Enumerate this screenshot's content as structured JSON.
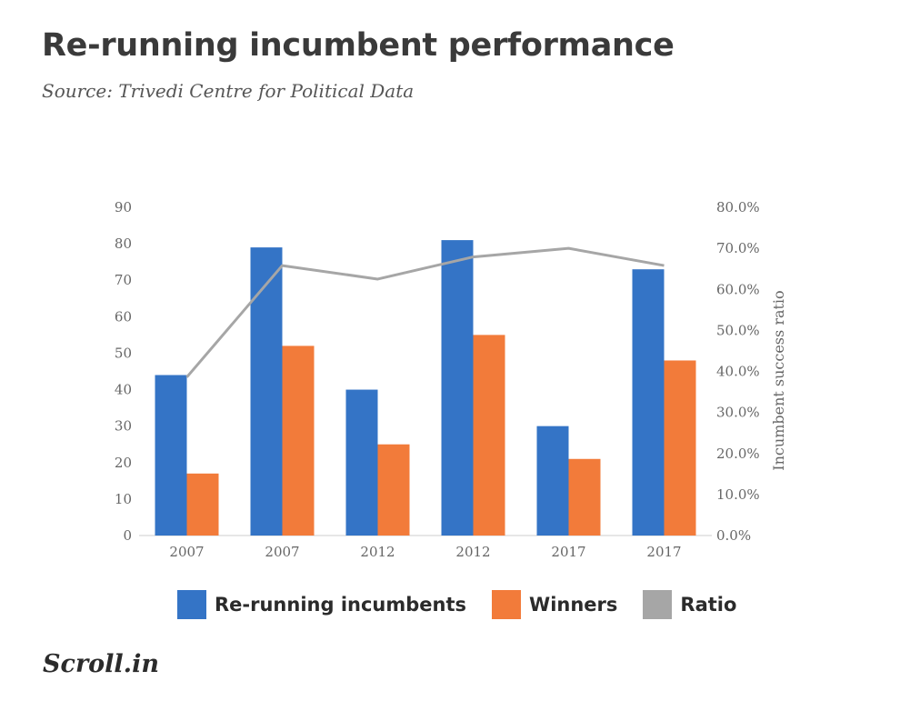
{
  "title": "Re-running incumbent performance",
  "subtitle": "Source: Trivedi Centre for Political Data",
  "brand": "Scroll.in",
  "colors": {
    "incumbents": "#3474c6",
    "winners": "#f27b3a",
    "ratio": "#a6a6a6"
  },
  "chart_data": {
    "type": "bar",
    "categories": [
      "2007",
      "2007",
      "2012",
      "2012",
      "2017",
      "2017"
    ],
    "series": [
      {
        "name": "Re-running incumbents",
        "type": "bar",
        "axis": "left",
        "values": [
          44,
          79,
          40,
          81,
          30,
          73
        ]
      },
      {
        "name": "Winners",
        "type": "bar",
        "axis": "left",
        "values": [
          17,
          52,
          25,
          55,
          21,
          48
        ]
      },
      {
        "name": "Ratio",
        "type": "line",
        "axis": "right",
        "values": [
          0.386,
          0.658,
          0.625,
          0.679,
          0.7,
          0.658
        ]
      }
    ],
    "ylim": [
      0,
      90
    ],
    "y_ticks": [
      "0",
      "10",
      "20",
      "30",
      "40",
      "50",
      "60",
      "70",
      "80",
      "90"
    ],
    "y2lim": [
      0,
      0.8
    ],
    "y2_ticks": [
      "0.0%",
      "10.0%",
      "20.0%",
      "30.0%",
      "40.0%",
      "50.0%",
      "60.0%",
      "70.0%",
      "80.0%"
    ],
    "ylabel": "",
    "y2label": "Incumbent success ratio",
    "xlabel": "",
    "grid": false,
    "legend_position": "bottom"
  }
}
